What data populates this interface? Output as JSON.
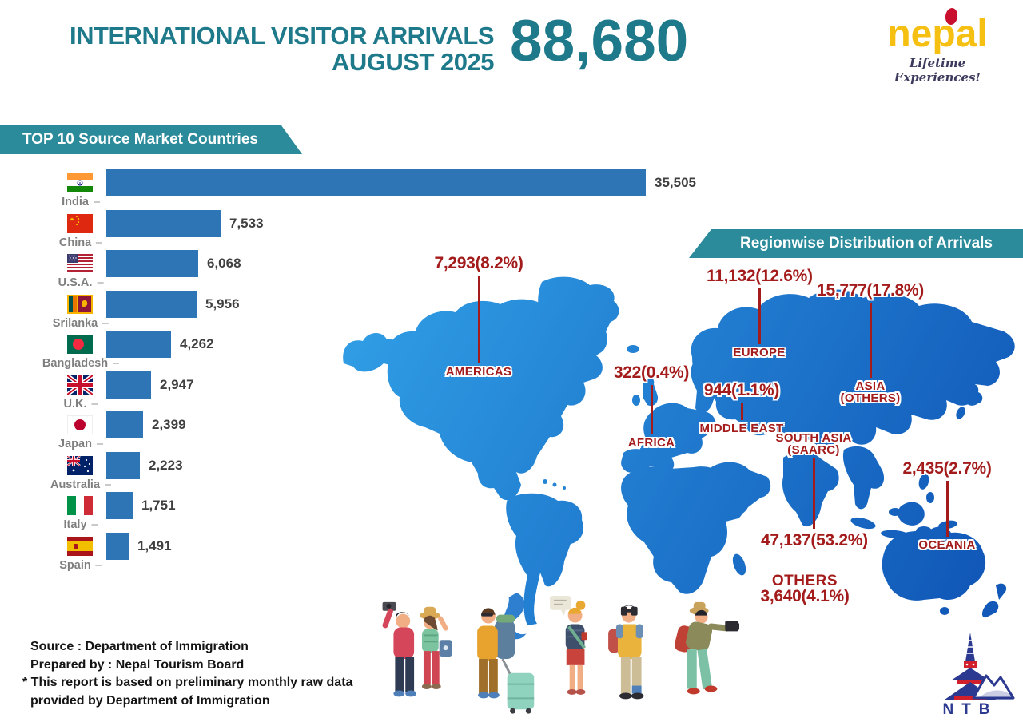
{
  "header": {
    "title_line1": "INTERNATIONAL VISITOR ARRIVALS",
    "title_line2": "AUGUST 2025",
    "total": "88,680",
    "brand": "nepal",
    "tagline": "Lifetime Experiences!"
  },
  "chart_data": {
    "type": "bar",
    "orientation": "horizontal",
    "title": "TOP 10 Source Market Countries",
    "categories": [
      "India",
      "China",
      "U.S.A.",
      "Srilanka",
      "Bangladesh",
      "U.K.",
      "Japan",
      "Australia",
      "Italy",
      "Spain"
    ],
    "values": [
      35505,
      7533,
      6068,
      5956,
      4262,
      2947,
      2399,
      2223,
      1751,
      1491
    ],
    "value_labels": [
      "35,505",
      "7,533",
      "6,068",
      "5,956",
      "4,262",
      "2,947",
      "2,399",
      "2,223",
      "1,751",
      "1,491"
    ],
    "xlim": [
      0,
      35505
    ],
    "bar_color": "#2e75b6",
    "grid": false,
    "legend": "none"
  },
  "map": {
    "title": "Regionwise Distribution of Arrivals",
    "label_color": "#a31b1b",
    "regions": [
      {
        "name": "AMERICAS",
        "value": "7,293(8.2%)"
      },
      {
        "name": "EUROPE",
        "value": "11,132(12.6%)"
      },
      {
        "name": "ASIA\n(OTHERS)",
        "value": "15,777(17.8%)"
      },
      {
        "name": "AFRICA",
        "value": "322(0.4%)"
      },
      {
        "name": "MIDDLE EAST",
        "value": "944(1.1%)"
      },
      {
        "name": "SOUTH ASIA\n(SAARC)",
        "value": "47,137(53.2%)"
      },
      {
        "name": "OCEANIA",
        "value": "2,435(2.7%)"
      },
      {
        "name": "OTHERS",
        "value": "3,640(4.1%)"
      }
    ]
  },
  "footer": {
    "source": "Source : Department of Immigration",
    "prepared_by": "Prepared by : Nepal Tourism Board",
    "note_line1": "* This report is based on preliminary monthly raw data",
    "note_line2": "provided by Department of Immigration",
    "ntb_label": "NTB"
  },
  "colors": {
    "title_teal": "#1e7a8b",
    "banner_teal": "#2b8b9b",
    "bar_blue": "#2e75b6",
    "map_blue_light": "#2f9ce4",
    "map_blue_dark": "#1158b8",
    "label_red": "#a31b1b"
  }
}
